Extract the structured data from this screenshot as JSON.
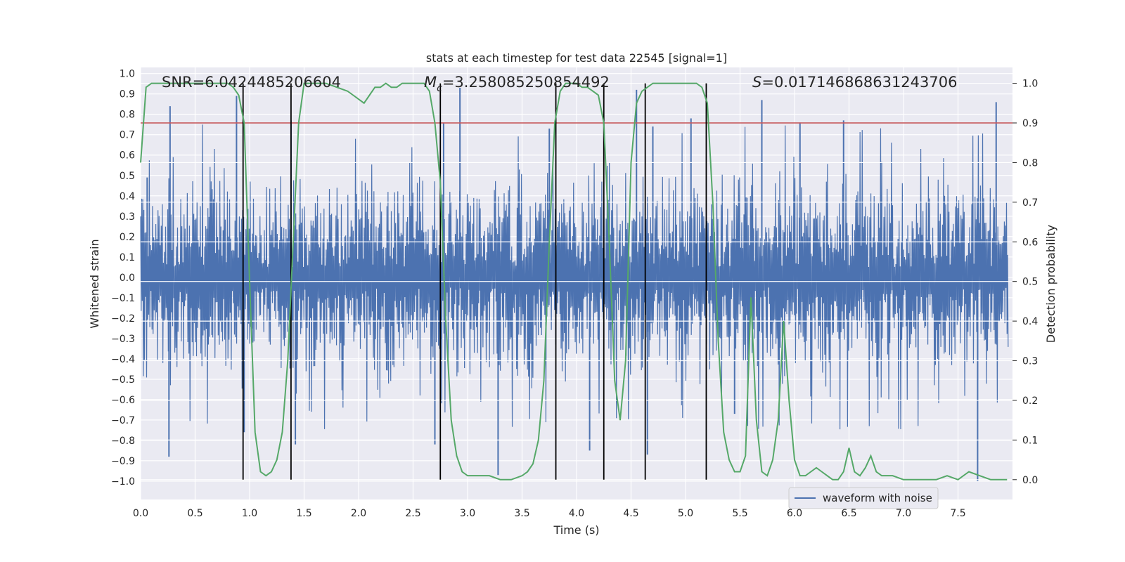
{
  "chart_data": {
    "type": "line",
    "title": "stats at each timestep for test data 22545 [signal=1]",
    "xlabel": "Time (s)",
    "ylabel_left": "Whitened strain",
    "ylabel_right": "Detection probability",
    "xlim": [
      0.0,
      8.0
    ],
    "ylim_left": [
      -1.09,
      1.03
    ],
    "ylim_right": [
      -0.05,
      1.04
    ],
    "x_ticks": [
      0.0,
      0.5,
      1.0,
      1.5,
      2.0,
      2.5,
      3.0,
      3.5,
      4.0,
      4.5,
      5.0,
      5.5,
      6.0,
      6.5,
      7.0,
      7.5
    ],
    "x_tick_labels": [
      "0.0",
      "0.5",
      "1.0",
      "1.5",
      "2.0",
      "2.5",
      "3.0",
      "3.5",
      "4.0",
      "4.5",
      "5.0",
      "5.5",
      "6.0",
      "6.5",
      "7.0",
      "7.5"
    ],
    "y_left_ticks": [
      -1.0,
      -0.9,
      -0.8,
      -0.7,
      -0.6,
      -0.5,
      -0.4,
      -0.3,
      -0.2,
      -0.1,
      0.0,
      0.1,
      0.2,
      0.3,
      0.4,
      0.5,
      0.6,
      0.7,
      0.8,
      0.9,
      1.0
    ],
    "y_left_tick_labels": [
      "−1.0",
      "−0.9",
      "−0.8",
      "−0.7",
      "−0.6",
      "−0.5",
      "−0.4",
      "−0.3",
      "−0.2",
      "−0.1",
      "0.0",
      "0.1",
      "0.2",
      "0.3",
      "0.4",
      "0.5",
      "0.6",
      "0.7",
      "0.8",
      "0.9",
      "1.0"
    ],
    "y_right_ticks": [
      0.0,
      0.1,
      0.2,
      0.3,
      0.4,
      0.5,
      0.6,
      0.7,
      0.8,
      0.9,
      1.0
    ],
    "y_right_tick_labels": [
      "0.0",
      "0.1",
      "0.2",
      "0.3",
      "0.4",
      "0.5",
      "0.6",
      "0.7",
      "0.8",
      "0.9",
      "1.0"
    ],
    "grid": true,
    "legend_position": "bottom-right",
    "legend": [
      {
        "label": "waveform with noise",
        "color": "#4c72b0"
      }
    ],
    "annotations": {
      "snr": "SNR=6.0424485206604",
      "mc_symbol": "M",
      "mc_sub": "c",
      "mc_value": "=3.258085250854492",
      "s_symbol": "S",
      "s_value": "=0.017146868631243706"
    },
    "threshold": {
      "value": 0.9,
      "axis": "right",
      "color": "#c44e52"
    },
    "vertical_lines_x": [
      0.94,
      1.38,
      2.75,
      3.81,
      4.25,
      4.63,
      5.19
    ],
    "waveform": {
      "name": "waveform with noise",
      "color": "#4c72b0",
      "description": "noisy whitened strain, mostly within ±0.4 with spikes up to ~0.9 and down to ~-1.0",
      "spikes_up": [
        [
          0.06,
          0.49
        ],
        [
          0.27,
          0.84
        ],
        [
          0.88,
          0.89
        ],
        [
          1.38,
          0.77
        ],
        [
          2.78,
          0.76
        ],
        [
          2.93,
          0.93
        ],
        [
          3.75,
          0.73
        ],
        [
          4.55,
          0.92
        ],
        [
          4.7,
          0.74
        ],
        [
          5.05,
          0.78
        ],
        [
          5.7,
          0.87
        ],
        [
          6.05,
          0.76
        ],
        [
          6.45,
          0.77
        ],
        [
          7.85,
          0.86
        ]
      ],
      "spikes_down": [
        [
          0.26,
          -0.88
        ],
        [
          0.95,
          -0.76
        ],
        [
          1.42,
          -0.82
        ],
        [
          2.7,
          -0.82
        ],
        [
          3.28,
          -0.97
        ],
        [
          4.12,
          -0.85
        ],
        [
          4.65,
          -0.87
        ],
        [
          5.45,
          -0.67
        ],
        [
          7.68,
          -1.0
        ]
      ]
    },
    "probability": {
      "name": "detection probability",
      "color": "#55a868",
      "x": [
        0.0,
        0.05,
        0.1,
        0.15,
        0.2,
        0.3,
        0.4,
        0.5,
        0.6,
        0.7,
        0.8,
        0.85,
        0.9,
        0.95,
        1.0,
        1.05,
        1.1,
        1.15,
        1.2,
        1.25,
        1.3,
        1.35,
        1.4,
        1.45,
        1.5,
        1.6,
        1.7,
        1.8,
        1.9,
        1.95,
        2.0,
        2.05,
        2.1,
        2.15,
        2.2,
        2.25,
        2.3,
        2.35,
        2.4,
        2.5,
        2.6,
        2.65,
        2.7,
        2.75,
        2.8,
        2.85,
        2.9,
        2.95,
        3.0,
        3.1,
        3.2,
        3.3,
        3.4,
        3.5,
        3.55,
        3.6,
        3.65,
        3.7,
        3.75,
        3.8,
        3.85,
        3.9,
        3.95,
        4.0,
        4.05,
        4.1,
        4.15,
        4.2,
        4.25,
        4.3,
        4.35,
        4.4,
        4.45,
        4.5,
        4.55,
        4.6,
        4.65,
        4.7,
        4.75,
        4.8,
        4.85,
        4.9,
        5.0,
        5.1,
        5.15,
        5.2,
        5.25,
        5.3,
        5.35,
        5.4,
        5.45,
        5.5,
        5.55,
        5.6,
        5.65,
        5.7,
        5.75,
        5.8,
        5.85,
        5.9,
        5.95,
        6.0,
        6.05,
        6.1,
        6.15,
        6.2,
        6.25,
        6.3,
        6.35,
        6.4,
        6.45,
        6.5,
        6.55,
        6.6,
        6.65,
        6.7,
        6.75,
        6.8,
        6.85,
        6.9,
        7.0,
        7.1,
        7.2,
        7.3,
        7.4,
        7.5,
        7.6,
        7.7,
        7.8,
        7.95
      ],
      "y": [
        0.8,
        0.99,
        1.0,
        1.0,
        1.0,
        1.0,
        1.0,
        1.0,
        1.0,
        1.0,
        1.0,
        0.99,
        0.97,
        0.9,
        0.5,
        0.12,
        0.02,
        0.01,
        0.02,
        0.05,
        0.12,
        0.3,
        0.6,
        0.9,
        1.0,
        1.0,
        1.0,
        0.99,
        0.98,
        0.97,
        0.96,
        0.95,
        0.97,
        0.99,
        0.99,
        1.0,
        0.99,
        0.99,
        1.0,
        1.0,
        1.0,
        0.98,
        0.9,
        0.75,
        0.4,
        0.15,
        0.06,
        0.02,
        0.01,
        0.01,
        0.01,
        0.0,
        0.0,
        0.01,
        0.02,
        0.04,
        0.1,
        0.25,
        0.6,
        0.9,
        0.98,
        1.0,
        1.0,
        1.0,
        0.99,
        0.99,
        0.98,
        0.97,
        0.9,
        0.6,
        0.25,
        0.15,
        0.3,
        0.8,
        0.95,
        0.98,
        0.99,
        1.0,
        1.0,
        1.0,
        1.0,
        1.0,
        1.0,
        1.0,
        0.99,
        0.95,
        0.7,
        0.35,
        0.12,
        0.05,
        0.02,
        0.02,
        0.06,
        0.46,
        0.15,
        0.02,
        0.01,
        0.05,
        0.15,
        0.4,
        0.2,
        0.05,
        0.01,
        0.01,
        0.02,
        0.03,
        0.02,
        0.01,
        0.0,
        0.0,
        0.02,
        0.08,
        0.02,
        0.01,
        0.03,
        0.06,
        0.02,
        0.01,
        0.01,
        0.01,
        0.0,
        0.0,
        0.0,
        0.0,
        0.01,
        0.0,
        0.02,
        0.01,
        0.0,
        0.0
      ]
    }
  }
}
